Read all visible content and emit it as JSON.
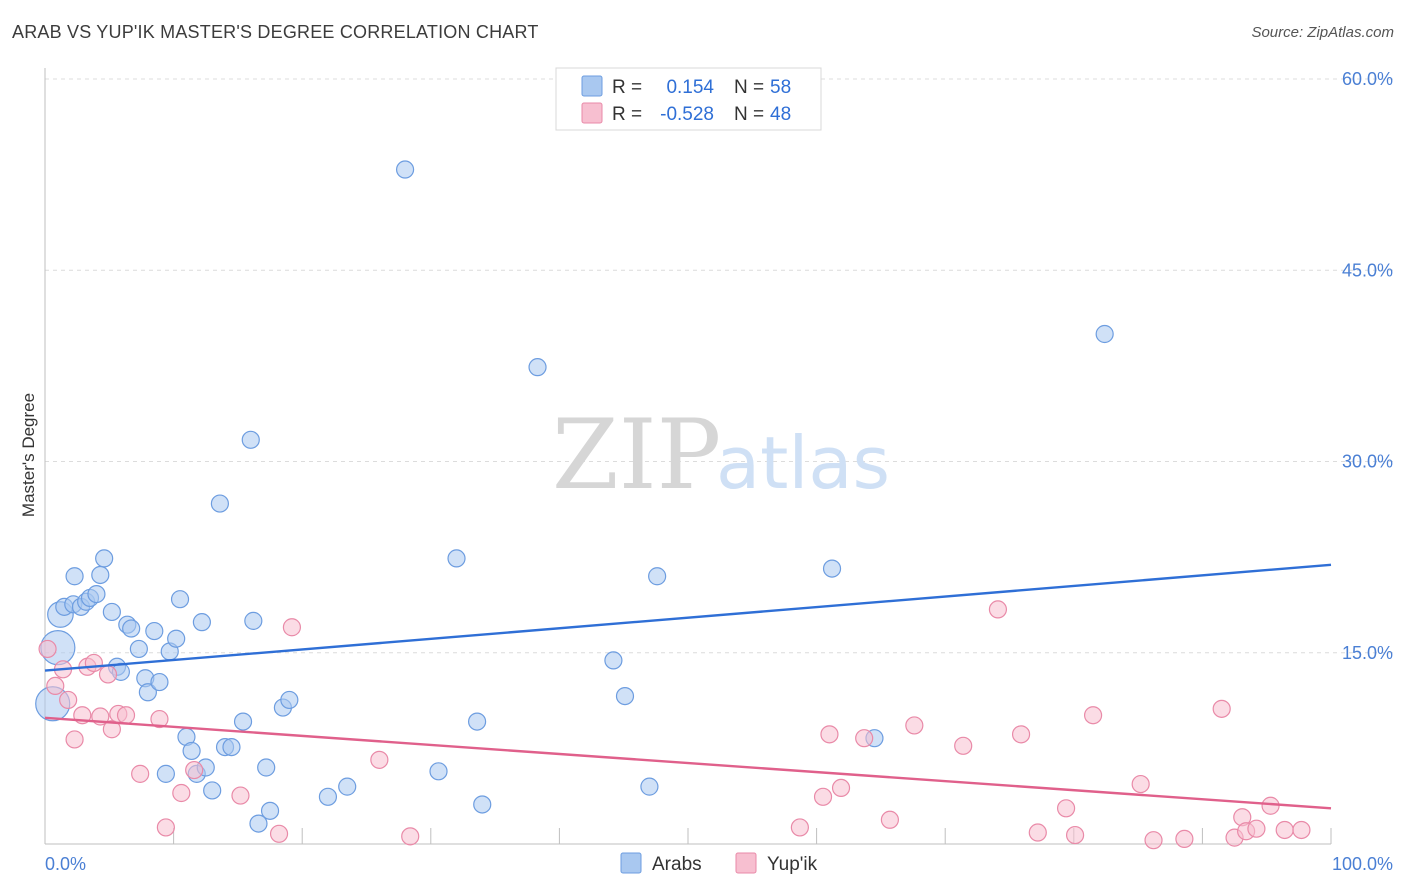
{
  "title": "ARAB VS YUP'IK MASTER'S DEGREE CORRELATION CHART",
  "source": "Source: ZipAtlas.com",
  "watermark": {
    "zip": "ZIP",
    "atlas": "atlas"
  },
  "legend": {
    "rows": [
      {
        "r_label": "R =",
        "r_value": "0.154",
        "n_label": "N =",
        "n_value": "58",
        "color": "#a9c8f0",
        "stroke": "#6d9de0"
      },
      {
        "r_label": "R =",
        "r_value": "-0.528",
        "n_label": "N =",
        "n_value": "48",
        "color": "#f7bfd0",
        "stroke": "#e98aa8"
      }
    ]
  },
  "bottom_legend": [
    {
      "label": "Arabs",
      "color": "#a9c8f0",
      "stroke": "#6d9de0"
    },
    {
      "label": "Yup'ik",
      "color": "#f7bfd0",
      "stroke": "#e98aa8"
    }
  ],
  "chart_data": {
    "type": "scatter",
    "ylabel": "Master's Degree",
    "xlim": [
      0,
      100
    ],
    "ylim": [
      0,
      60
    ],
    "x_tick_labels": [
      "0.0%",
      "100.0%"
    ],
    "y_ticks": [
      {
        "value": 15,
        "label": "15.0%"
      },
      {
        "value": 30,
        "label": "30.0%"
      },
      {
        "value": 45,
        "label": "45.0%"
      },
      {
        "value": 60,
        "label": "60.0%"
      }
    ],
    "grid": "horizontal-dashed",
    "series": [
      {
        "name": "Arabs",
        "fill": "#a9c8f0",
        "stroke": "#6d9de0",
        "line_color": "#2f6fd6",
        "trend": {
          "x": [
            0,
            100
          ],
          "y": [
            13.6,
            21.9
          ]
        },
        "points": [
          {
            "x": 1.0,
            "y": 15.4,
            "s": 2
          },
          {
            "x": 0.6,
            "y": 11.0,
            "s": 2
          },
          {
            "x": 1.2,
            "y": 18.0,
            "s": 1.5
          },
          {
            "x": 1.5,
            "y": 18.6
          },
          {
            "x": 2.2,
            "y": 18.8
          },
          {
            "x": 2.3,
            "y": 21.0
          },
          {
            "x": 2.8,
            "y": 18.6
          },
          {
            "x": 3.2,
            "y": 19.0
          },
          {
            "x": 3.5,
            "y": 19.3
          },
          {
            "x": 4.0,
            "y": 19.6
          },
          {
            "x": 4.3,
            "y": 21.1
          },
          {
            "x": 4.6,
            "y": 22.4
          },
          {
            "x": 5.2,
            "y": 18.2
          },
          {
            "x": 5.6,
            "y": 13.9
          },
          {
            "x": 5.9,
            "y": 13.5
          },
          {
            "x": 6.4,
            "y": 17.2
          },
          {
            "x": 6.7,
            "y": 16.9
          },
          {
            "x": 7.3,
            "y": 15.3
          },
          {
            "x": 7.8,
            "y": 13.0
          },
          {
            "x": 8.0,
            "y": 11.9
          },
          {
            "x": 8.5,
            "y": 16.7
          },
          {
            "x": 8.9,
            "y": 12.7
          },
          {
            "x": 9.4,
            "y": 5.5
          },
          {
            "x": 9.7,
            "y": 15.1
          },
          {
            "x": 10.2,
            "y": 16.1
          },
          {
            "x": 10.5,
            "y": 19.2
          },
          {
            "x": 11.0,
            "y": 8.4
          },
          {
            "x": 11.4,
            "y": 7.3
          },
          {
            "x": 11.8,
            "y": 5.5
          },
          {
            "x": 12.2,
            "y": 17.4
          },
          {
            "x": 12.5,
            "y": 6.0
          },
          {
            "x": 13.0,
            "y": 4.2
          },
          {
            "x": 13.6,
            "y": 26.7
          },
          {
            "x": 14.0,
            "y": 7.6
          },
          {
            "x": 14.5,
            "y": 7.6
          },
          {
            "x": 15.4,
            "y": 9.6
          },
          {
            "x": 16.0,
            "y": 31.7
          },
          {
            "x": 16.2,
            "y": 17.5
          },
          {
            "x": 16.6,
            "y": 1.6
          },
          {
            "x": 17.2,
            "y": 6.0
          },
          {
            "x": 17.5,
            "y": 2.6
          },
          {
            "x": 18.5,
            "y": 10.7
          },
          {
            "x": 19.0,
            "y": 11.3
          },
          {
            "x": 22.0,
            "y": 3.7
          },
          {
            "x": 23.5,
            "y": 4.5
          },
          {
            "x": 28.0,
            "y": 52.9
          },
          {
            "x": 30.6,
            "y": 5.7
          },
          {
            "x": 32.0,
            "y": 22.4
          },
          {
            "x": 33.6,
            "y": 9.6
          },
          {
            "x": 34.0,
            "y": 3.1
          },
          {
            "x": 38.3,
            "y": 37.4
          },
          {
            "x": 44.2,
            "y": 14.4
          },
          {
            "x": 45.1,
            "y": 11.6
          },
          {
            "x": 47.0,
            "y": 4.5
          },
          {
            "x": 47.6,
            "y": 21.0
          },
          {
            "x": 61.2,
            "y": 21.6
          },
          {
            "x": 64.5,
            "y": 8.3
          },
          {
            "x": 82.4,
            "y": 40.0
          }
        ]
      },
      {
        "name": "Yup'ik",
        "fill": "#f7bfd0",
        "stroke": "#e98aa8",
        "line_color": "#e0608b",
        "trend": {
          "x": [
            0,
            100
          ],
          "y": [
            9.9,
            2.8
          ]
        },
        "points": [
          {
            "x": 0.2,
            "y": 15.3
          },
          {
            "x": 0.8,
            "y": 12.4
          },
          {
            "x": 1.4,
            "y": 13.7
          },
          {
            "x": 1.8,
            "y": 11.3
          },
          {
            "x": 2.3,
            "y": 8.2
          },
          {
            "x": 2.9,
            "y": 10.1
          },
          {
            "x": 3.3,
            "y": 13.9
          },
          {
            "x": 3.8,
            "y": 14.2
          },
          {
            "x": 4.3,
            "y": 10.0
          },
          {
            "x": 4.9,
            "y": 13.3
          },
          {
            "x": 5.2,
            "y": 9.0
          },
          {
            "x": 5.7,
            "y": 10.2
          },
          {
            "x": 6.3,
            "y": 10.1
          },
          {
            "x": 7.4,
            "y": 5.5
          },
          {
            "x": 8.9,
            "y": 9.8
          },
          {
            "x": 9.4,
            "y": 1.3
          },
          {
            "x": 10.6,
            "y": 4.0
          },
          {
            "x": 11.6,
            "y": 5.8
          },
          {
            "x": 15.2,
            "y": 3.8
          },
          {
            "x": 18.2,
            "y": 0.8
          },
          {
            "x": 19.2,
            "y": 17.0
          },
          {
            "x": 26.0,
            "y": 6.6
          },
          {
            "x": 28.4,
            "y": 0.6
          },
          {
            "x": 58.7,
            "y": 1.3
          },
          {
            "x": 60.5,
            "y": 3.7
          },
          {
            "x": 61.0,
            "y": 8.6
          },
          {
            "x": 61.9,
            "y": 4.4
          },
          {
            "x": 63.7,
            "y": 8.3
          },
          {
            "x": 65.7,
            "y": 1.9
          },
          {
            "x": 67.6,
            "y": 9.3
          },
          {
            "x": 71.4,
            "y": 7.7
          },
          {
            "x": 74.1,
            "y": 18.4
          },
          {
            "x": 75.9,
            "y": 8.6
          },
          {
            "x": 77.2,
            "y": 0.9
          },
          {
            "x": 79.4,
            "y": 2.8
          },
          {
            "x": 80.1,
            "y": 0.7
          },
          {
            "x": 81.5,
            "y": 10.1
          },
          {
            "x": 85.2,
            "y": 4.7
          },
          {
            "x": 86.2,
            "y": 0.3
          },
          {
            "x": 88.6,
            "y": 0.4
          },
          {
            "x": 91.5,
            "y": 10.6
          },
          {
            "x": 92.5,
            "y": 0.5
          },
          {
            "x": 93.1,
            "y": 2.1
          },
          {
            "x": 93.4,
            "y": 1.0
          },
          {
            "x": 94.2,
            "y": 1.2
          },
          {
            "x": 95.3,
            "y": 3.0
          },
          {
            "x": 96.4,
            "y": 1.1
          },
          {
            "x": 97.7,
            "y": 1.1
          }
        ]
      }
    ]
  }
}
